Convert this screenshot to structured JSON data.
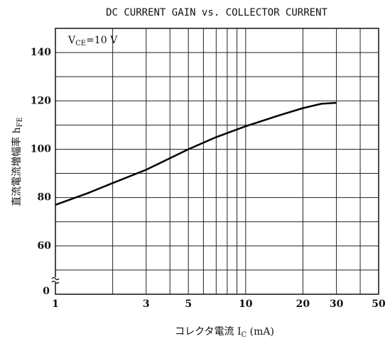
{
  "chart_data": {
    "type": "line",
    "title": "DC CURRENT GAIN vs. COLLECTOR CURRENT",
    "annotation": {
      "main": "V",
      "sub": "CE",
      "rest": "=10  V"
    },
    "x_label": {
      "main": "コレクタ電流  I",
      "sub": "C",
      "rest": " (mA)"
    },
    "y_label": {
      "main": "直流電流増幅率  h",
      "sub": "FE"
    },
    "x_scale": "log",
    "xlim": [
      1,
      50
    ],
    "xticks": [
      1,
      3,
      5,
      10,
      20,
      30,
      50
    ],
    "x_minor_grid": [
      2,
      4,
      6,
      7,
      8,
      9,
      40
    ],
    "ylim": [
      40,
      150
    ],
    "yticks": [
      60,
      80,
      100,
      120,
      140
    ],
    "y_minor_grid": [
      50,
      70,
      90,
      110,
      130
    ],
    "y_break_label": "0",
    "grid": true,
    "color": "#000000",
    "x": [
      1,
      1.5,
      2,
      3,
      5,
      7,
      10,
      15,
      20,
      25,
      30
    ],
    "values": [
      77,
      82,
      86,
      91.5,
      100,
      105,
      109.5,
      114,
      117,
      118.8,
      119.2
    ]
  }
}
